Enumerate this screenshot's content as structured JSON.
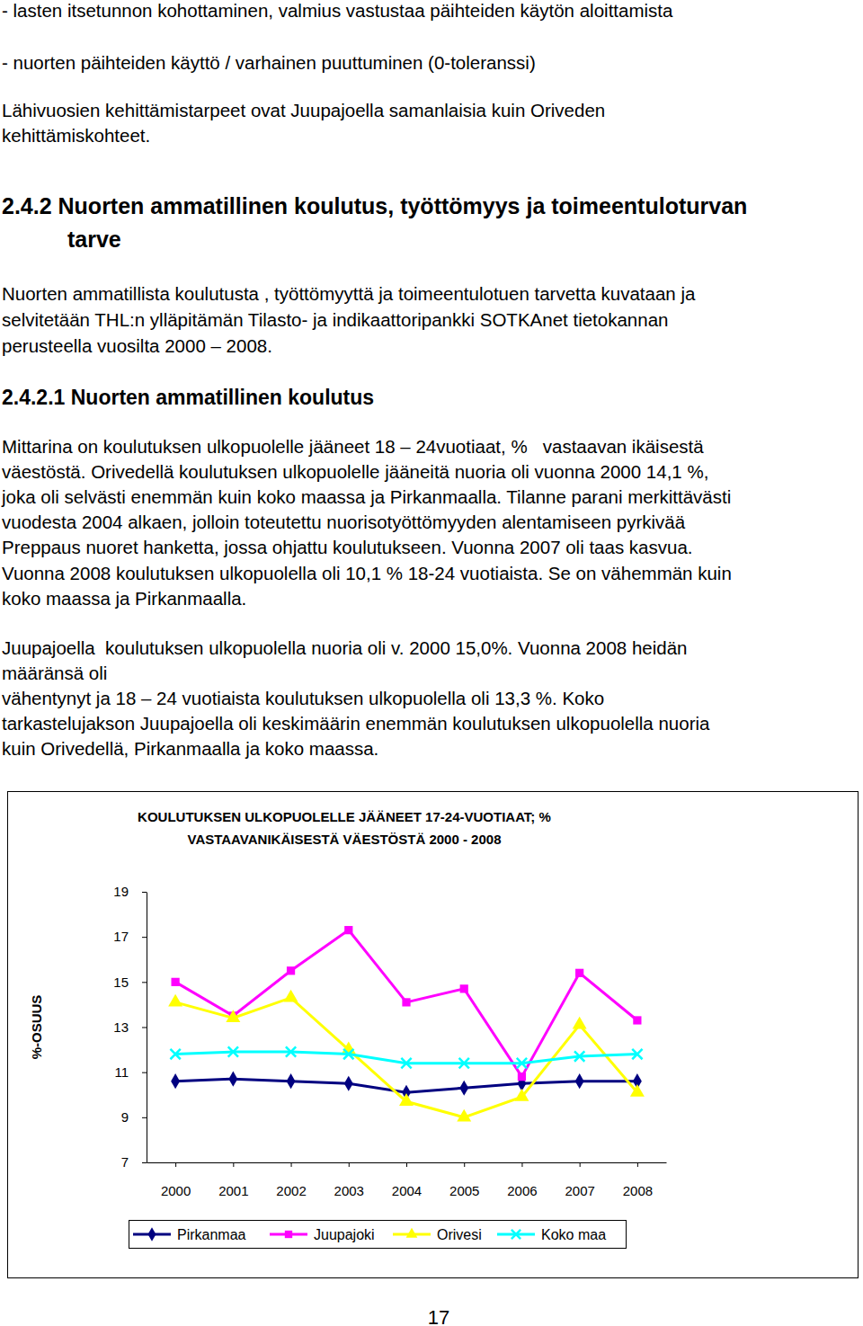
{
  "document": {
    "bullets": [
      "- lasten itsetunnon kohottaminen, valmius vastustaa päihteiden käytön aloittamista",
      "- nuorten päihteiden käyttö / varhainen puuttuminen (0-toleranssi)"
    ],
    "intro": [
      "Lähivuosien kehittämistarpeet ovat Juupajoella samanlaisia kuin Oriveden",
      "kehittämiskohteet."
    ],
    "heading": [
      "2.4.2 Nuorten ammatillinen koulutus, työttömyys ja toimeentuloturvan",
      "tarve"
    ],
    "heading_text": [
      "Nuorten ammatillista koulutusta , työttömyyttä ja toimeentulotuen tarvetta kuvataan ja",
      "selvitetään THL:n ylläpitämän Tilasto- ja indikaattoripankki SOTKAnet tietokannan",
      "perusteella vuosilta 2000 – 2008."
    ],
    "subheading": "2.4.2.1 Nuorten ammatillinen koulutus",
    "orivesi_text": [
      "Mittarina on koulutuksen ulkopuolelle jääneet 18 – 24vuotiaat, %   vastaavan ikäisestä",
      "väestöstä. Orivedellä koulutuksen ulkopuolelle jääneitä nuoria oli vuonna 2000 14,1 %,",
      "joka oli selvästi enemmän kuin koko maassa ja Pirkanmaalla. Tilanne parani merkittävästi",
      "vuodesta 2004 alkaen, jolloin toteutettu nuorisotyöttömyyden alentamiseen pyrkivää",
      "Preppaus nuoret hanketta, jossa ohjattu koulutukseen. Vuonna 2007 oli taas kasvua.",
      "Vuonna 2008 koulutuksen ulkopuolella oli 10,1 % 18-24 vuotiaista. Se on vähemmän kuin",
      "koko maassa ja Pirkanmaalla."
    ],
    "juupajoki_text": [
      "Juupajoella  koulutuksen ulkopuolella nuoria oli v. 2000 15,0%. Vuonna 2008 heidän",
      "määränsä oli",
      "vähentynyt ja 18 – 24 vuotiaista koulutuksen ulkopuolella oli 13,3 %. Koko",
      "tarkastelujakson Juupajoella oli keskimäärin enemmän koulutuksen ulkopuolella nuoria",
      "kuin Orivedellä, Pirkanmaalla ja koko maassa."
    ],
    "page_number": "17"
  },
  "chart_data": {
    "type": "line",
    "title": [
      "KOULUTUKSEN ULKOPUOLELLE JÄÄNEET 17-24-VUOTIAAT; %",
      "VASTAAVANIKÄISESTÄ VÄESTÖSTÄ 2000 - 2008"
    ],
    "ylabel": "%-OSUUS",
    "categories": [
      "2000",
      "2001",
      "2002",
      "2003",
      "2004",
      "2005",
      "2006",
      "2007",
      "2008"
    ],
    "series": [
      {
        "name": "Pirkanmaa",
        "color": "#000080",
        "marker": "diamond",
        "line_style": "solid",
        "values": [
          10.6,
          10.7,
          10.6,
          10.5,
          10.1,
          10.3,
          10.5,
          10.6,
          10.6
        ]
      },
      {
        "name": "Juupajoki",
        "color": "#ff00ff",
        "marker": "square",
        "line_style": "solid",
        "values": [
          15.0,
          13.5,
          15.5,
          17.3,
          14.1,
          14.7,
          10.8,
          15.4,
          13.3
        ]
      },
      {
        "name": "Orivesi",
        "color": "#ffff00",
        "marker": "triangle",
        "line_style": "solid",
        "values": [
          14.1,
          13.4,
          14.3,
          12.0,
          9.7,
          9.0,
          9.9,
          13.1,
          10.1
        ]
      },
      {
        "name": "Koko maa",
        "color": "#00ffff",
        "marker": "x",
        "line_style": "solid",
        "values": [
          11.8,
          11.9,
          11.9,
          11.8,
          11.4,
          11.4,
          11.4,
          11.7,
          11.8
        ]
      }
    ],
    "ylim": [
      7,
      19
    ],
    "yticks": [
      7,
      9,
      11,
      13,
      15,
      17,
      19
    ],
    "grid": false,
    "legend": "bottom"
  }
}
